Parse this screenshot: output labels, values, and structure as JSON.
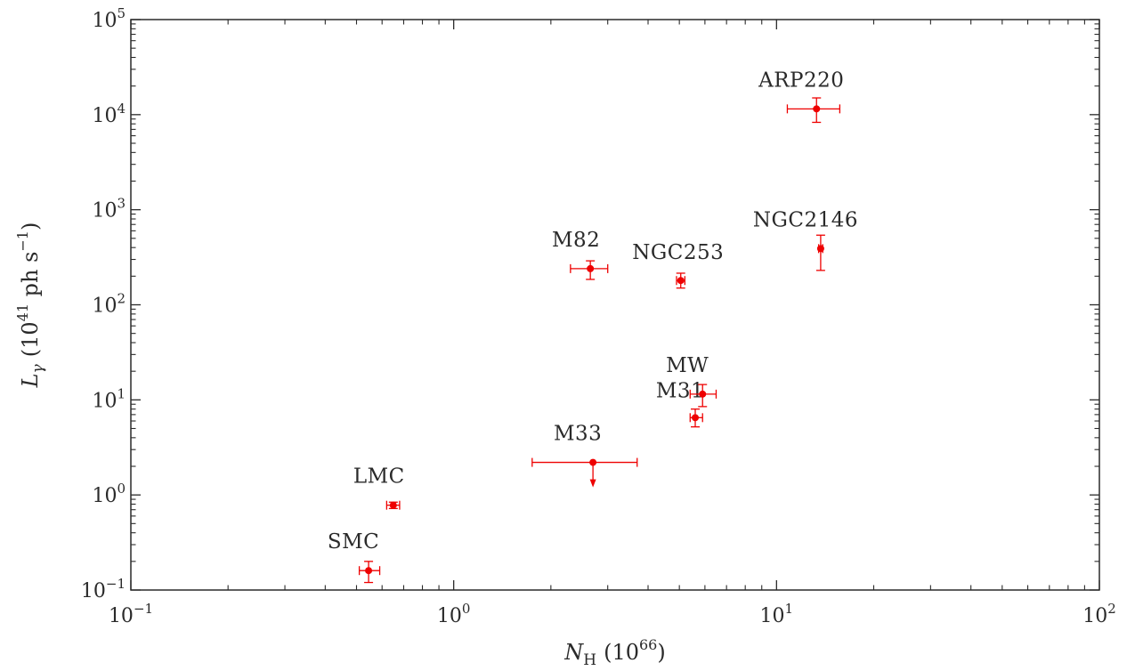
{
  "chart_data": {
    "type": "scatter",
    "xscale": "log",
    "yscale": "log",
    "xlim": [
      0.1,
      100
    ],
    "ylim": [
      0.1,
      100000
    ],
    "xlabel": {
      "main": "N",
      "sub": "H",
      "unit": "(10",
      "unit_exp": "66",
      "unit_end": ")"
    },
    "ylabel": {
      "main": "L",
      "sub": "γ",
      "unit": "(10",
      "unit_exp": "41",
      "unit_mid": " ph s",
      "unit_exp2": "−1",
      "unit_end": ")"
    },
    "xticks": [
      {
        "value": 0.1,
        "base": "10",
        "exp": "−1"
      },
      {
        "value": 1,
        "base": "10",
        "exp": "0"
      },
      {
        "value": 10,
        "base": "10",
        "exp": "1"
      },
      {
        "value": 100,
        "base": "10",
        "exp": "2"
      }
    ],
    "yticks": [
      {
        "value": 0.1,
        "base": "10",
        "exp": "−1"
      },
      {
        "value": 1,
        "base": "10",
        "exp": "0"
      },
      {
        "value": 10,
        "base": "10",
        "exp": "1"
      },
      {
        "value": 100,
        "base": "10",
        "exp": "2"
      },
      {
        "value": 1000,
        "base": "10",
        "exp": "3"
      },
      {
        "value": 10000,
        "base": "10",
        "exp": "4"
      },
      {
        "value": 100000,
        "base": "10",
        "exp": "5"
      }
    ],
    "grid": false,
    "color": "#ee0000",
    "points": [
      {
        "name": "SMC",
        "x": 0.545,
        "y": 0.16,
        "xerr": [
          0.51,
          0.59
        ],
        "yerr": [
          0.12,
          0.2
        ],
        "upper_limit": false
      },
      {
        "name": "LMC",
        "x": 0.65,
        "y": 0.78,
        "xerr": [
          0.62,
          0.68
        ],
        "yerr": [
          0.72,
          0.84
        ],
        "upper_limit": false
      },
      {
        "name": "M33",
        "x": 2.7,
        "y": 2.2,
        "xerr": [
          1.75,
          3.7
        ],
        "yerr": null,
        "upper_limit": true
      },
      {
        "name": "M82",
        "x": 2.65,
        "y": 240,
        "xerr": [
          2.3,
          3.0
        ],
        "yerr": [
          185,
          290
        ],
        "upper_limit": false
      },
      {
        "name": "NGC253",
        "x": 5.05,
        "y": 180,
        "xerr": [
          4.9,
          5.2
        ],
        "yerr": [
          150,
          215
        ],
        "upper_limit": false
      },
      {
        "name": "M31",
        "x": 5.6,
        "y": 6.5,
        "xerr": [
          5.4,
          5.9
        ],
        "yerr": [
          5.2,
          8.0
        ],
        "upper_limit": false
      },
      {
        "name": "MW",
        "x": 5.9,
        "y": 11.5,
        "xerr": [
          5.4,
          6.5
        ],
        "yerr": [
          8.5,
          14.5
        ],
        "upper_limit": false
      },
      {
        "name": "NGC2146",
        "x": 13.7,
        "y": 390,
        "xerr": [
          13.5,
          13.9
        ],
        "yerr": [
          230,
          540
        ],
        "upper_limit": false
      },
      {
        "name": "ARP220",
        "x": 13.3,
        "y": 11500,
        "xerr": [
          10.8,
          15.7
        ],
        "yerr": [
          8300,
          15000
        ],
        "upper_limit": false
      }
    ]
  }
}
